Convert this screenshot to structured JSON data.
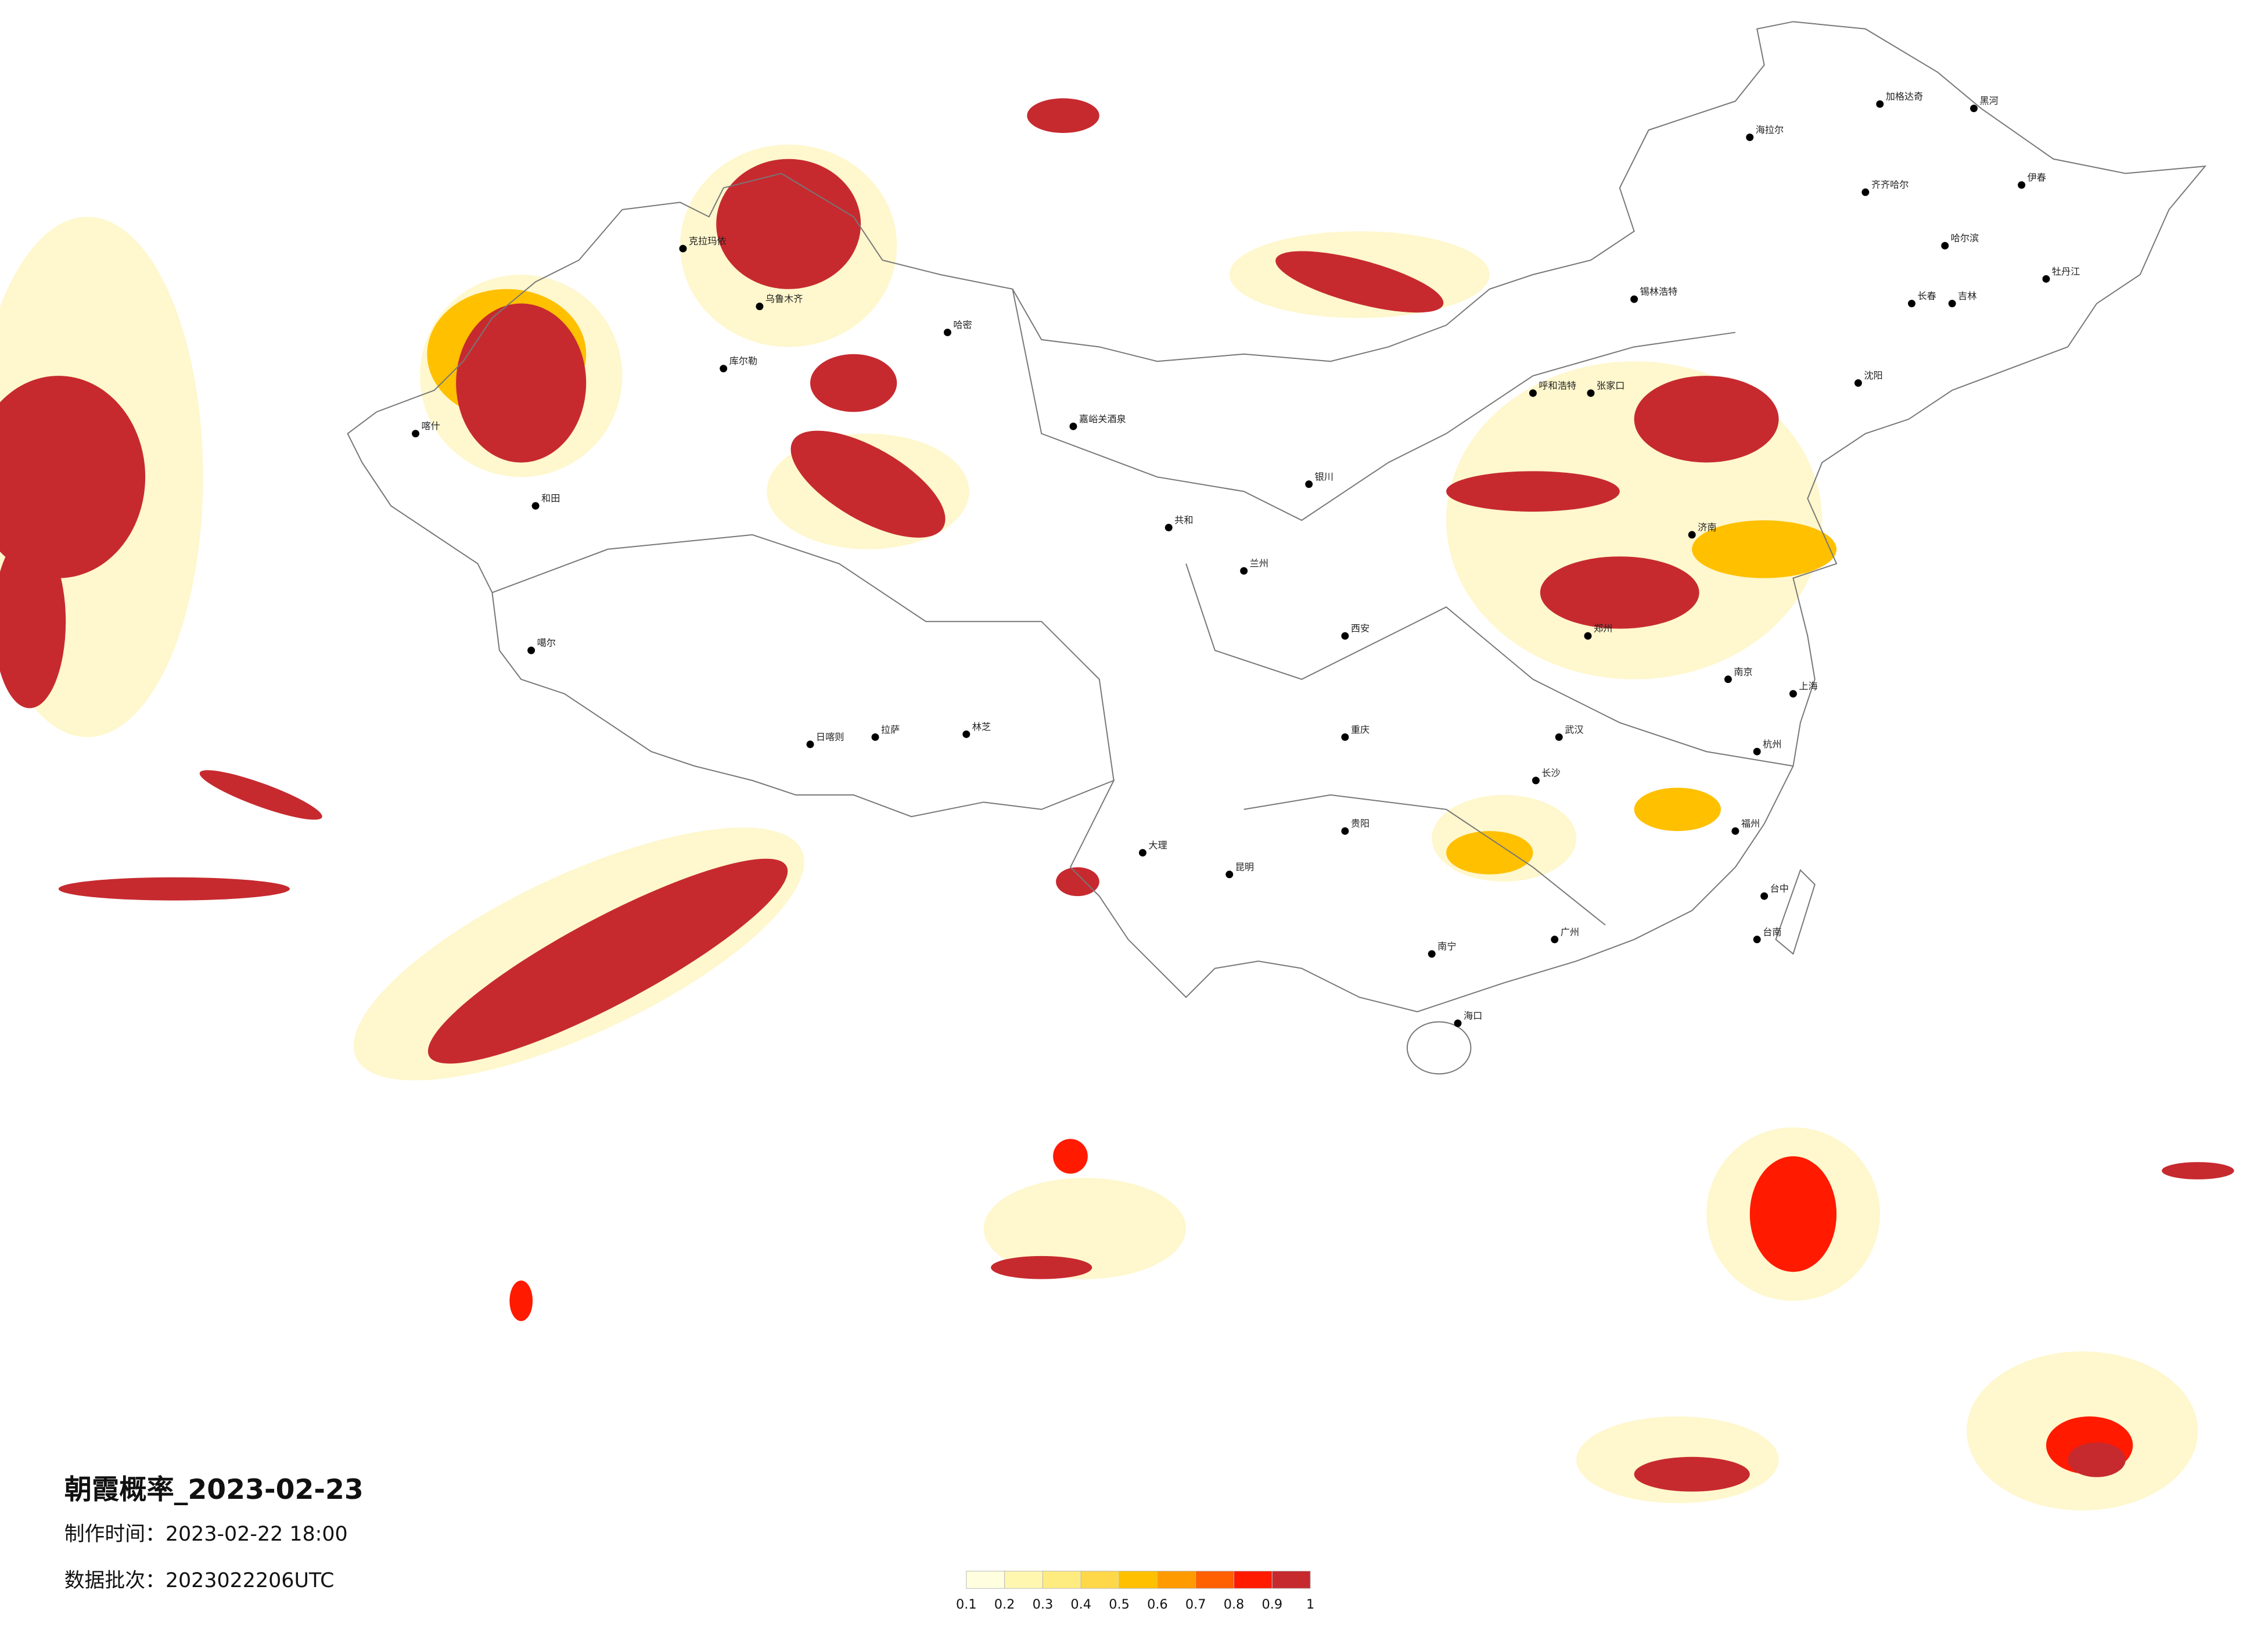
{
  "title": "朝霞概率_2023-02-23",
  "made_time": "制作时间：2023-02-22 18:00",
  "batch": "数据批次：2023022206UTC",
  "colorbar": {
    "ticks": [
      0.1,
      0.2,
      0.3,
      0.4,
      0.5,
      0.6,
      0.7,
      0.8,
      0.9,
      1
    ],
    "colors": [
      "#ffffe0",
      "#fff7b0",
      "#ffec80",
      "#ffd84a",
      "#ffc000",
      "#ff9a00",
      "#ff6000",
      "#ff1a00",
      "#c62a2f"
    ]
  },
  "cities": [
    "加格达奇",
    "海拉尔",
    "齐齐哈尔",
    "黑河",
    "伊春",
    "哈尔滨",
    "牡丹江",
    "长春",
    "吉林",
    "沈阳",
    "锡林浩特",
    "呼和浩特",
    "张家口",
    "济南",
    "郑州",
    "南京",
    "上海",
    "武汉",
    "长沙",
    "福州",
    "台中",
    "台南",
    "广州",
    "海口",
    "南宁",
    "贵阳",
    "昆明",
    "重庆",
    "西安",
    "兰州",
    "银川",
    "嘉峪关酒泉",
    "共和",
    "拉萨",
    "日喀则",
    "林芝",
    "喀什",
    "和田",
    "哈密",
    "乌鲁木齐",
    "克拉玛依",
    "库尔勒",
    "噶尔",
    "大理",
    "杭州"
  ]
}
